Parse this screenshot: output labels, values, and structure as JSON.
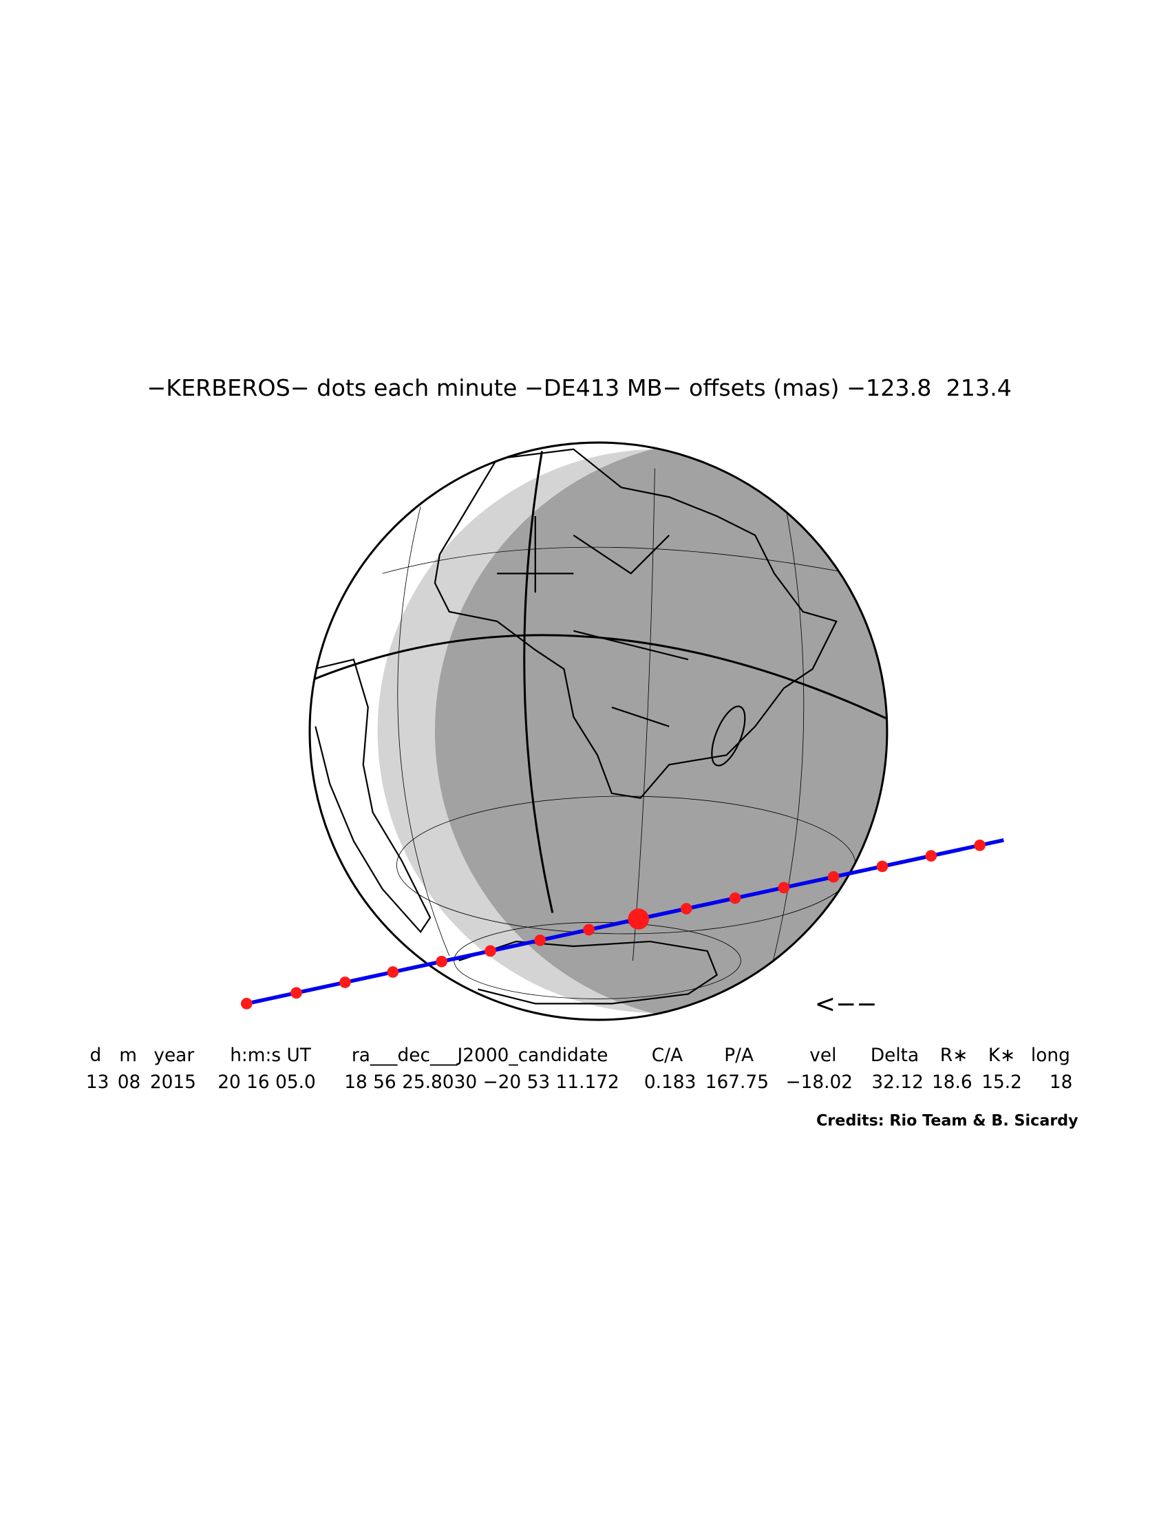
{
  "title": "−KERBEROS− dots each minute −DE413 MB− offsets (mas) −123.8  213.4",
  "table": {
    "headers": [
      "d",
      "m",
      "year",
      "h:m:s UT",
      "ra___dec___J2000_candidate",
      "C/A",
      "P/A",
      "vel",
      "Delta",
      "R∗",
      "K∗",
      "long"
    ],
    "rows": [
      [
        "13",
        "08",
        "2015",
        "20 16 05.0",
        "18 56 25.8030 −20 53 11.172",
        "0.183",
        "167.75",
        "−18.02",
        "32.12",
        "18.6",
        "15.2",
        "18"
      ]
    ]
  },
  "arrow": "<−−",
  "credits": "Credits: Rio Team & B. Sicardy"
}
